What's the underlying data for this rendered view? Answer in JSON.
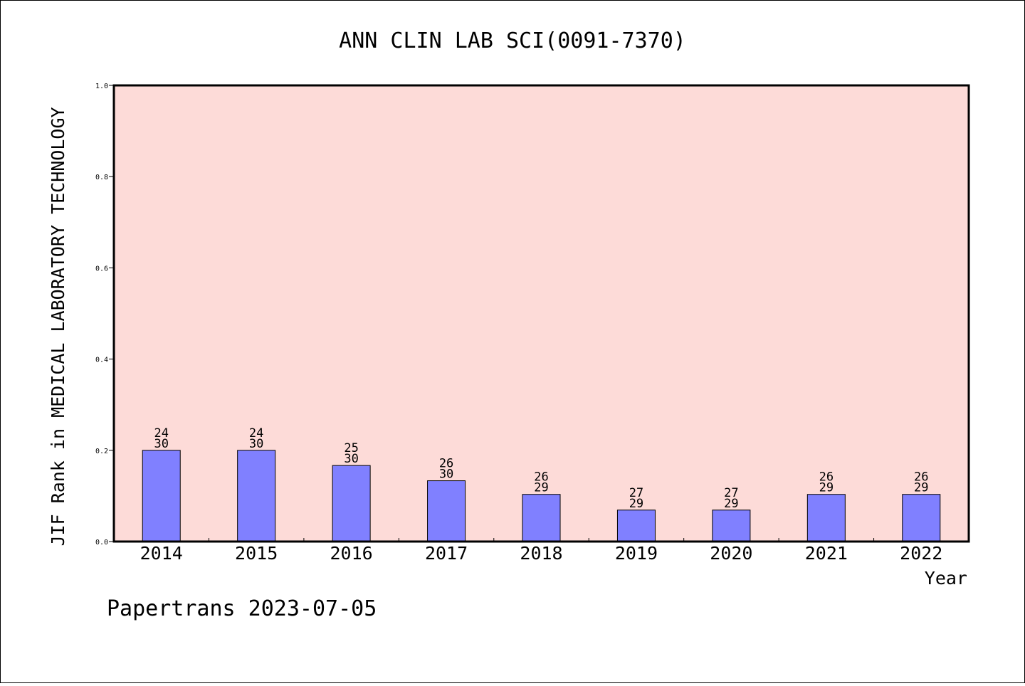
{
  "chart_data": {
    "type": "bar",
    "title": "ANN CLIN LAB SCI(0091-7370)",
    "xlabel": "Year",
    "ylabel": "JIF Rank in MEDICAL LABORATORY TECHNOLOGY",
    "ylim": [
      0,
      1.0
    ],
    "yticks": [
      "0.0",
      "0.2",
      "0.4",
      "0.6",
      "0.8",
      "1.0"
    ],
    "categories": [
      "2014",
      "2015",
      "2016",
      "2017",
      "2018",
      "2019",
      "2020",
      "2021",
      "2022"
    ],
    "values": [
      0.2,
      0.2,
      0.1667,
      0.1333,
      0.1034,
      0.069,
      0.069,
      0.1034,
      0.1034
    ],
    "rank_labels": [
      {
        "top": "24",
        "bottom": "30"
      },
      {
        "top": "24",
        "bottom": "30"
      },
      {
        "top": "25",
        "bottom": "30"
      },
      {
        "top": "26",
        "bottom": "30"
      },
      {
        "top": "26",
        "bottom": "29"
      },
      {
        "top": "27",
        "bottom": "29"
      },
      {
        "top": "27",
        "bottom": "29"
      },
      {
        "top": "26",
        "bottom": "29"
      },
      {
        "top": "26",
        "bottom": "29"
      }
    ],
    "grid": false,
    "colors": {
      "plot_background": "#fddbd8",
      "bar_fill": "#8080ff",
      "bar_stroke": "#000000"
    }
  },
  "footer": "Papertrans 2023-07-05"
}
